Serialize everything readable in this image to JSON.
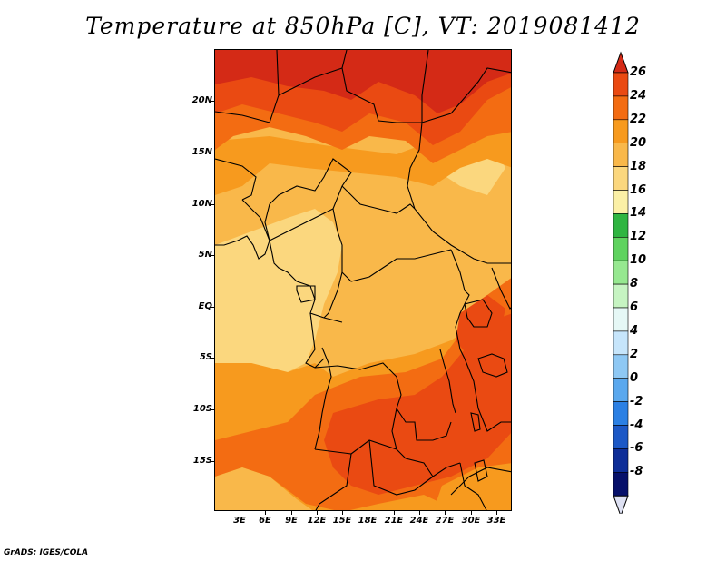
{
  "title": "Temperature at 850hPa [C], VT: 2019081412",
  "footer": "GrADS: IGES/COLA",
  "lat_labels": [
    "20N",
    "15N",
    "10N",
    "5N",
    "EQ",
    "5S",
    "10S",
    "15S"
  ],
  "lon_labels": [
    "3E",
    "6E",
    "9E",
    "12E",
    "15E",
    "18E",
    "21E",
    "24E",
    "27E",
    "30E",
    "33E"
  ],
  "colorbar": {
    "levels": [
      "26",
      "24",
      "22",
      "20",
      "18",
      "16",
      "14",
      "12",
      "10",
      "8",
      "6",
      "4",
      "2",
      "0",
      "-2",
      "-4",
      "-6",
      "-8"
    ],
    "colors": [
      "#d42a16",
      "#ea4a12",
      "#f36c12",
      "#f79a1e",
      "#f9b84a",
      "#fbd77e",
      "#fbf0a6",
      "#2fb541",
      "#5fd35f",
      "#96e890",
      "#c6f4c2",
      "#e6f8f6",
      "#c6e5fb",
      "#8ec8f4",
      "#5aa8ee",
      "#2b80e4",
      "#1c58c6",
      "#0e2e98",
      "#06106a",
      "#dde0f2"
    ]
  },
  "field_colors": {
    "t16": "#fbd77e",
    "t18": "#f9b84a",
    "t20": "#f79a1e",
    "t22": "#f36c12",
    "t24": "#ea4a12",
    "t26": "#d42a16"
  }
}
